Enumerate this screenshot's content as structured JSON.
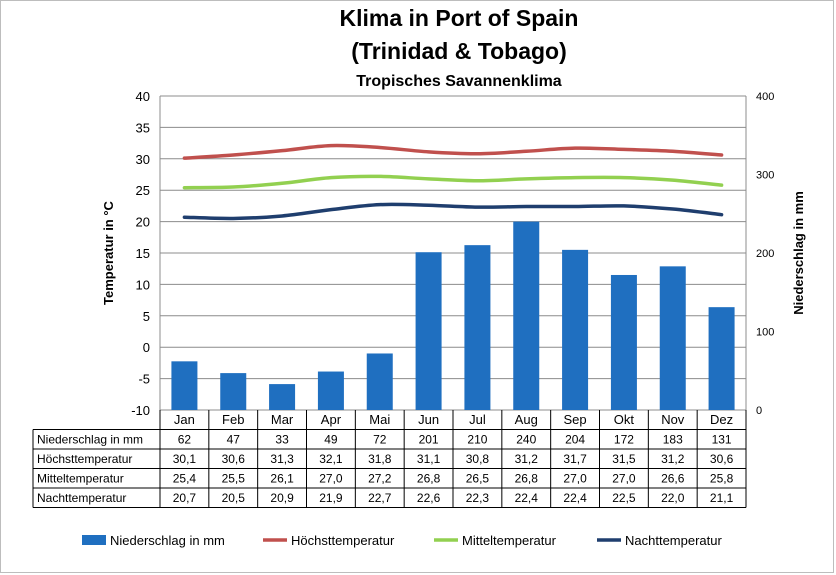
{
  "chart_data": {
    "type": "bar",
    "title": "Klima in Port of Spain",
    "title_line2": "(Trinidad & Tobago)",
    "subtitle": "Tropisches Savannenklima",
    "categories": [
      "Jan",
      "Feb",
      "Mar",
      "Apr",
      "Mai",
      "Jun",
      "Jul",
      "Aug",
      "Sep",
      "Okt",
      "Nov",
      "Dez"
    ],
    "ylabel_left": "Temperatur in °C",
    "ylabel_right": "Niederschlag in mm",
    "ylim_left": [
      -10,
      40
    ],
    "yticks_left": [
      "40",
      "35",
      "30",
      "25",
      "20",
      "15",
      "10",
      "5",
      "0",
      "-5",
      "-10"
    ],
    "ylim_right": [
      0,
      400
    ],
    "yticks_right": [
      "400",
      "300",
      "200",
      "100",
      "0"
    ],
    "grid": true,
    "legend_position": "bottom",
    "series": [
      {
        "name": "Niederschlag in mm",
        "type": "bar",
        "axis": "right",
        "color": "#1f6fc0",
        "values": [
          62,
          47,
          33,
          49,
          72,
          201,
          210,
          240,
          204,
          172,
          183,
          131
        ],
        "labels": [
          "62",
          "47",
          "33",
          "49",
          "72",
          "201",
          "210",
          "240",
          "204",
          "172",
          "183",
          "131"
        ]
      },
      {
        "name": "Höchsttemperatur",
        "type": "line",
        "axis": "left",
        "color": "#c0504d",
        "values": [
          30.1,
          30.6,
          31.3,
          32.1,
          31.8,
          31.1,
          30.8,
          31.2,
          31.7,
          31.5,
          31.2,
          30.6
        ],
        "labels": [
          "30,1",
          "30,6",
          "31,3",
          "32,1",
          "31,8",
          "31,1",
          "30,8",
          "31,2",
          "31,7",
          "31,5",
          "31,2",
          "30,6"
        ]
      },
      {
        "name": "Mitteltemperatur",
        "type": "line",
        "axis": "left",
        "color": "#92d050",
        "values": [
          25.4,
          25.5,
          26.1,
          27.0,
          27.2,
          26.8,
          26.5,
          26.8,
          27.0,
          27.0,
          26.6,
          25.8
        ],
        "labels": [
          "25,4",
          "25,5",
          "26,1",
          "27,0",
          "27,2",
          "26,8",
          "26,5",
          "26,8",
          "27,0",
          "27,0",
          "26,6",
          "25,8"
        ]
      },
      {
        "name": "Nachttemperatur",
        "type": "line",
        "axis": "left",
        "color": "#1f3e6e",
        "values": [
          20.7,
          20.5,
          20.9,
          21.9,
          22.7,
          22.6,
          22.3,
          22.4,
          22.4,
          22.5,
          22.0,
          21.1
        ],
        "labels": [
          "20,7",
          "20,5",
          "20,9",
          "21,9",
          "22,7",
          "22,6",
          "22,3",
          "22,4",
          "22,4",
          "22,5",
          "22,0",
          "21,1"
        ]
      }
    ]
  }
}
